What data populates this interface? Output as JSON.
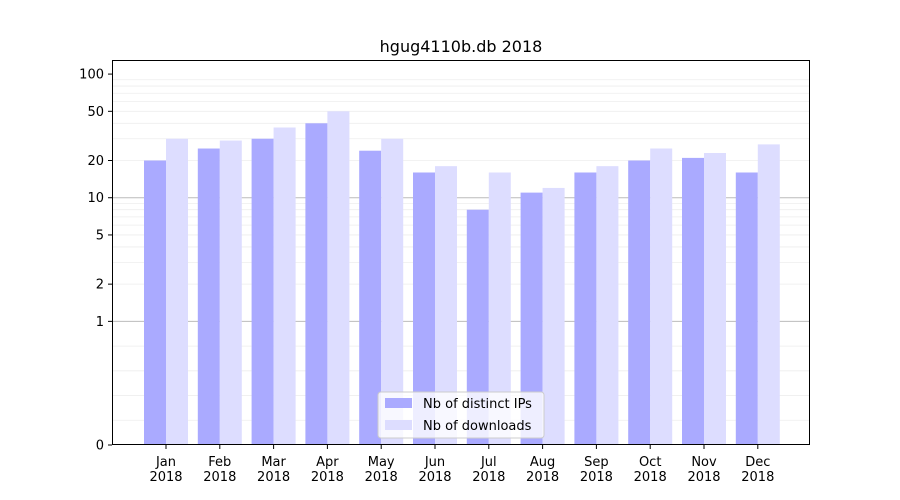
{
  "chart_data": {
    "type": "bar",
    "title": "hgug4110b.db 2018",
    "xlabel": "",
    "ylabel": "",
    "y_scale": "symlog",
    "ylim": [
      0,
      130
    ],
    "y_ticks": [
      0,
      1,
      2,
      5,
      10,
      20,
      50,
      100
    ],
    "y_tick_labels": [
      "0",
      "1",
      "2",
      "5",
      "10",
      "20",
      "50",
      "100"
    ],
    "categories": [
      [
        "Jan",
        "2018"
      ],
      [
        "Feb",
        "2018"
      ],
      [
        "Mar",
        "2018"
      ],
      [
        "Apr",
        "2018"
      ],
      [
        "May",
        "2018"
      ],
      [
        "Jun",
        "2018"
      ],
      [
        "Jul",
        "2018"
      ],
      [
        "Aug",
        "2018"
      ],
      [
        "Sep",
        "2018"
      ],
      [
        "Oct",
        "2018"
      ],
      [
        "Nov",
        "2018"
      ],
      [
        "Dec",
        "2018"
      ]
    ],
    "series": [
      {
        "name": "Nb of distinct IPs",
        "color": "#aaaaff",
        "values": [
          20,
          25,
          30,
          40,
          24,
          16,
          8,
          11,
          16,
          20,
          21,
          16
        ]
      },
      {
        "name": "Nb of downloads",
        "color": "#ddddff",
        "values": [
          30,
          29,
          37,
          50,
          30,
          18,
          16,
          12,
          18,
          25,
          23,
          27
        ]
      }
    ],
    "grid": true,
    "legend_placement": "bottom-center"
  }
}
